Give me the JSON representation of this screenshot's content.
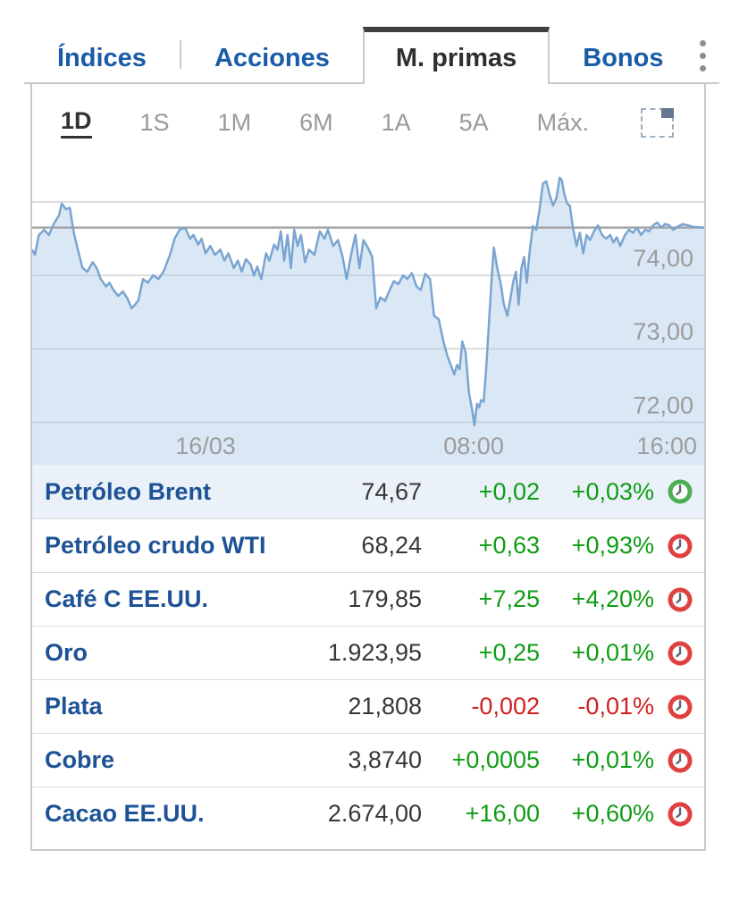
{
  "tabs": {
    "items": [
      "Índices",
      "Acciones",
      "M. primas",
      "Bonos"
    ],
    "active_index": 2
  },
  "menu_icon": "kebab-menu",
  "ranges": {
    "items": [
      "1D",
      "1S",
      "1M",
      "6M",
      "1A",
      "5A",
      "Máx."
    ],
    "active_index": 0,
    "fullscreen_icon": "expand-chart"
  },
  "chart_data": {
    "type": "area",
    "title": "Petróleo Brent intradía (1D)",
    "ylim": [
      71.42,
      75.62
    ],
    "grid": true,
    "yticks": [
      {
        "value": 75,
        "label": ""
      },
      {
        "value": 74,
        "label": "74,00"
      },
      {
        "value": 73,
        "label": "73,00"
      },
      {
        "value": 72,
        "label": "72,00"
      }
    ],
    "previous_close": 74.65,
    "x_labels": [
      {
        "label": "16/03",
        "pos": 0.258,
        "align": "center"
      },
      {
        "label": "08:00",
        "pos": 0.657,
        "align": "center"
      },
      {
        "label": "16:00",
        "pos": 1.0,
        "align": "right"
      }
    ],
    "line_color": "#7aa5d1",
    "fill_color": "rgba(174,205,232,0.45)",
    "grid_color": "#dcdcdc",
    "prev_close_color": "#a6a6a6",
    "axis_text_color": "#9c9c9c",
    "series": [
      [
        0.0,
        74.35
      ],
      [
        0.004,
        74.28
      ],
      [
        0.01,
        74.55
      ],
      [
        0.018,
        74.62
      ],
      [
        0.025,
        74.55
      ],
      [
        0.032,
        74.7
      ],
      [
        0.04,
        74.82
      ],
      [
        0.044,
        74.98
      ],
      [
        0.05,
        74.9
      ],
      [
        0.056,
        74.92
      ],
      [
        0.062,
        74.58
      ],
      [
        0.068,
        74.35
      ],
      [
        0.075,
        74.1
      ],
      [
        0.082,
        74.05
      ],
      [
        0.09,
        74.18
      ],
      [
        0.096,
        74.1
      ],
      [
        0.102,
        73.95
      ],
      [
        0.11,
        73.85
      ],
      [
        0.115,
        73.9
      ],
      [
        0.121,
        73.8
      ],
      [
        0.128,
        73.72
      ],
      [
        0.135,
        73.78
      ],
      [
        0.142,
        73.68
      ],
      [
        0.148,
        73.55
      ],
      [
        0.153,
        73.6
      ],
      [
        0.158,
        73.66
      ],
      [
        0.165,
        73.95
      ],
      [
        0.172,
        73.9
      ],
      [
        0.18,
        74.0
      ],
      [
        0.188,
        73.95
      ],
      [
        0.196,
        74.06
      ],
      [
        0.205,
        74.28
      ],
      [
        0.212,
        74.5
      ],
      [
        0.22,
        74.63
      ],
      [
        0.228,
        74.64
      ],
      [
        0.235,
        74.5
      ],
      [
        0.24,
        74.55
      ],
      [
        0.247,
        74.42
      ],
      [
        0.252,
        74.5
      ],
      [
        0.258,
        74.3
      ],
      [
        0.265,
        74.4
      ],
      [
        0.272,
        74.28
      ],
      [
        0.28,
        74.35
      ],
      [
        0.286,
        74.2
      ],
      [
        0.292,
        74.3
      ],
      [
        0.3,
        74.1
      ],
      [
        0.306,
        74.2
      ],
      [
        0.312,
        74.05
      ],
      [
        0.318,
        74.22
      ],
      [
        0.325,
        74.15
      ],
      [
        0.33,
        74.0
      ],
      [
        0.335,
        74.12
      ],
      [
        0.341,
        73.95
      ],
      [
        0.348,
        74.3
      ],
      [
        0.353,
        74.2
      ],
      [
        0.36,
        74.42
      ],
      [
        0.365,
        74.35
      ],
      [
        0.37,
        74.6
      ],
      [
        0.375,
        74.2
      ],
      [
        0.38,
        74.55
      ],
      [
        0.385,
        74.1
      ],
      [
        0.39,
        74.62
      ],
      [
        0.395,
        74.4
      ],
      [
        0.4,
        74.55
      ],
      [
        0.406,
        74.18
      ],
      [
        0.412,
        74.35
      ],
      [
        0.42,
        74.28
      ],
      [
        0.428,
        74.6
      ],
      [
        0.435,
        74.5
      ],
      [
        0.44,
        74.62
      ],
      [
        0.448,
        74.4
      ],
      [
        0.455,
        74.48
      ],
      [
        0.462,
        74.25
      ],
      [
        0.468,
        73.95
      ],
      [
        0.475,
        74.3
      ],
      [
        0.481,
        74.55
      ],
      [
        0.487,
        74.1
      ],
      [
        0.493,
        74.48
      ],
      [
        0.5,
        74.37
      ],
      [
        0.506,
        74.25
      ],
      [
        0.512,
        73.55
      ],
      [
        0.518,
        73.7
      ],
      [
        0.525,
        73.65
      ],
      [
        0.532,
        73.8
      ],
      [
        0.538,
        73.92
      ],
      [
        0.545,
        73.88
      ],
      [
        0.552,
        74.0
      ],
      [
        0.558,
        73.95
      ],
      [
        0.565,
        74.03
      ],
      [
        0.572,
        73.85
      ],
      [
        0.578,
        73.8
      ],
      [
        0.585,
        74.02
      ],
      [
        0.592,
        73.95
      ],
      [
        0.598,
        73.45
      ],
      [
        0.605,
        73.4
      ],
      [
        0.612,
        73.1
      ],
      [
        0.618,
        72.9
      ],
      [
        0.622,
        72.8
      ],
      [
        0.628,
        72.65
      ],
      [
        0.632,
        72.78
      ],
      [
        0.636,
        72.72
      ],
      [
        0.64,
        73.1
      ],
      [
        0.645,
        72.95
      ],
      [
        0.65,
        72.4
      ],
      [
        0.655,
        72.15
      ],
      [
        0.658,
        71.96
      ],
      [
        0.662,
        72.25
      ],
      [
        0.665,
        72.2
      ],
      [
        0.668,
        72.3
      ],
      [
        0.672,
        72.28
      ],
      [
        0.676,
        72.8
      ],
      [
        0.68,
        73.4
      ],
      [
        0.684,
        74.0
      ],
      [
        0.687,
        74.38
      ],
      [
        0.692,
        74.1
      ],
      [
        0.697,
        73.9
      ],
      [
        0.702,
        73.6
      ],
      [
        0.707,
        73.45
      ],
      [
        0.712,
        73.7
      ],
      [
        0.716,
        73.92
      ],
      [
        0.72,
        74.05
      ],
      [
        0.724,
        73.6
      ],
      [
        0.728,
        74.1
      ],
      [
        0.732,
        74.25
      ],
      [
        0.736,
        73.9
      ],
      [
        0.74,
        74.3
      ],
      [
        0.745,
        74.67
      ],
      [
        0.75,
        74.62
      ],
      [
        0.755,
        74.9
      ],
      [
        0.76,
        75.25
      ],
      [
        0.765,
        75.28
      ],
      [
        0.77,
        75.1
      ],
      [
        0.775,
        74.95
      ],
      [
        0.78,
        75.05
      ],
      [
        0.785,
        75.33
      ],
      [
        0.788,
        75.3
      ],
      [
        0.792,
        75.1
      ],
      [
        0.796,
        74.98
      ],
      [
        0.8,
        74.95
      ],
      [
        0.805,
        74.63
      ],
      [
        0.81,
        74.4
      ],
      [
        0.815,
        74.58
      ],
      [
        0.82,
        74.3
      ],
      [
        0.825,
        74.55
      ],
      [
        0.83,
        74.48
      ],
      [
        0.836,
        74.6
      ],
      [
        0.842,
        74.68
      ],
      [
        0.848,
        74.55
      ],
      [
        0.854,
        74.5
      ],
      [
        0.86,
        74.55
      ],
      [
        0.865,
        74.45
      ],
      [
        0.87,
        74.52
      ],
      [
        0.875,
        74.4
      ],
      [
        0.882,
        74.55
      ],
      [
        0.888,
        74.62
      ],
      [
        0.894,
        74.58
      ],
      [
        0.9,
        74.65
      ],
      [
        0.906,
        74.55
      ],
      [
        0.912,
        74.62
      ],
      [
        0.918,
        74.6
      ],
      [
        0.924,
        74.68
      ],
      [
        0.93,
        74.72
      ],
      [
        0.936,
        74.65
      ],
      [
        0.942,
        74.7
      ],
      [
        0.948,
        74.68
      ],
      [
        0.954,
        74.62
      ],
      [
        0.96,
        74.66
      ],
      [
        0.968,
        74.7
      ],
      [
        0.976,
        74.68
      ],
      [
        0.985,
        74.66
      ],
      [
        1.0,
        74.65
      ]
    ]
  },
  "table": {
    "rows": [
      {
        "name": "Petróleo Brent",
        "last": "74,67",
        "change": "+0,02",
        "pct": "+0,03%",
        "dir": "up",
        "clock": "green",
        "highlighted": true
      },
      {
        "name": "Petróleo crudo WTI",
        "last": "68,24",
        "change": "+0,63",
        "pct": "+0,93%",
        "dir": "up",
        "clock": "red",
        "highlighted": false
      },
      {
        "name": "Café C EE.UU.",
        "last": "179,85",
        "change": "+7,25",
        "pct": "+4,20%",
        "dir": "up",
        "clock": "red",
        "highlighted": false
      },
      {
        "name": "Oro",
        "last": "1.923,95",
        "change": "+0,25",
        "pct": "+0,01%",
        "dir": "up",
        "clock": "red",
        "highlighted": false
      },
      {
        "name": "Plata",
        "last": "21,808",
        "change": "-0,002",
        "pct": "-0,01%",
        "dir": "down",
        "clock": "red",
        "highlighted": false
      },
      {
        "name": "Cobre",
        "last": "3,8740",
        "change": "+0,0005",
        "pct": "+0,01%",
        "dir": "up",
        "clock": "red",
        "highlighted": false
      },
      {
        "name": "Cacao EE.UU.",
        "last": "2.674,00",
        "change": "+16,00",
        "pct": "+0,60%",
        "dir": "up",
        "clock": "red",
        "highlighted": false
      }
    ],
    "clock_colors": {
      "green": "#4caf50",
      "red": "#e04040"
    }
  }
}
